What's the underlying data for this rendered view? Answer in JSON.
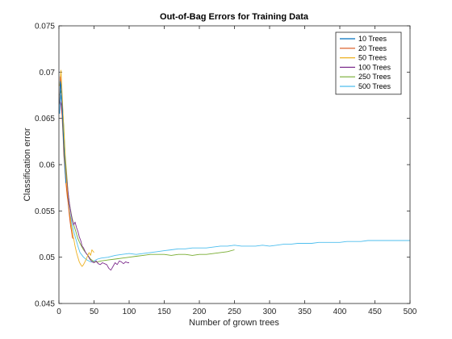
{
  "chart_data": {
    "type": "line",
    "title": "Out-of-Bag Errors for Training Data",
    "xlabel": "Number of grown trees",
    "ylabel": "Classification error",
    "xlim": [
      0,
      500
    ],
    "ylim": [
      0.045,
      0.075
    ],
    "xticks": [
      0,
      50,
      100,
      150,
      200,
      250,
      300,
      350,
      400,
      450,
      500
    ],
    "yticks": [
      0.045,
      0.05,
      0.055,
      0.06,
      0.065,
      0.07,
      0.075
    ],
    "xtick_labels": [
      "0",
      "50",
      "100",
      "150",
      "200",
      "250",
      "300",
      "350",
      "400",
      "450",
      "500"
    ],
    "ytick_labels": [
      "0.045",
      "0.05",
      "0.055",
      "0.06",
      "0.065",
      "0.07",
      "0.075"
    ],
    "grid": false,
    "legend_position": "top-right",
    "series": [
      {
        "name": "10 Trees",
        "color": "#0072BD",
        "x": [
          1,
          2,
          3,
          4,
          5,
          6,
          7,
          8,
          9,
          10
        ],
        "y": [
          0.0655,
          0.069,
          0.0685,
          0.067,
          0.066,
          0.0635,
          0.062,
          0.0605,
          0.0592,
          0.058
        ]
      },
      {
        "name": "20 Trees",
        "color": "#D95319",
        "x": [
          1,
          2,
          3,
          4,
          5,
          6,
          7,
          8,
          9,
          10,
          11,
          12,
          13,
          14,
          15,
          16,
          17,
          18,
          19,
          20
        ],
        "y": [
          0.0665,
          0.0695,
          0.0685,
          0.0665,
          0.0645,
          0.063,
          0.061,
          0.06,
          0.059,
          0.058,
          0.0572,
          0.0565,
          0.056,
          0.0552,
          0.0545,
          0.0538,
          0.0532,
          0.0528,
          0.0522,
          0.052
        ]
      },
      {
        "name": "50 Trees",
        "color": "#EDB120",
        "x": [
          1,
          3,
          5,
          7,
          9,
          11,
          13,
          15,
          17,
          19,
          21,
          23,
          25,
          27,
          29,
          31,
          33,
          35,
          37,
          39,
          41,
          43,
          45,
          47,
          50
        ],
        "y": [
          0.0685,
          0.0702,
          0.067,
          0.0635,
          0.0605,
          0.058,
          0.056,
          0.0548,
          0.0538,
          0.0528,
          0.052,
          0.0512,
          0.0505,
          0.05,
          0.0495,
          0.0492,
          0.049,
          0.0492,
          0.0495,
          0.0498,
          0.0502,
          0.0505,
          0.0502,
          0.0508,
          0.0505
        ]
      },
      {
        "name": "100 Trees",
        "color": "#7E2F8E",
        "x": [
          1,
          3,
          5,
          7,
          9,
          11,
          13,
          15,
          17,
          19,
          21,
          23,
          25,
          27,
          29,
          31,
          33,
          35,
          38,
          41,
          44,
          47,
          50,
          53,
          56,
          59,
          62,
          65,
          68,
          71,
          74,
          77,
          80,
          83,
          86,
          89,
          92,
          95,
          98,
          100
        ],
        "y": [
          0.067,
          0.0665,
          0.065,
          0.0625,
          0.0605,
          0.0585,
          0.057,
          0.0558,
          0.0548,
          0.054,
          0.0535,
          0.0538,
          0.0532,
          0.0528,
          0.0522,
          0.0518,
          0.0512,
          0.051,
          0.0505,
          0.0502,
          0.0498,
          0.0495,
          0.0494,
          0.0496,
          0.0493,
          0.0492,
          0.0494,
          0.0493,
          0.0492,
          0.0488,
          0.0486,
          0.049,
          0.0494,
          0.0492,
          0.0496,
          0.0495,
          0.0493,
          0.0495,
          0.0494,
          0.0494
        ]
      },
      {
        "name": "250 Trees",
        "color": "#77AC30",
        "x": [
          1,
          3,
          5,
          7,
          9,
          11,
          13,
          15,
          18,
          21,
          24,
          27,
          30,
          35,
          40,
          45,
          50,
          55,
          60,
          70,
          80,
          90,
          100,
          110,
          120,
          130,
          140,
          150,
          160,
          170,
          180,
          190,
          200,
          210,
          220,
          230,
          240,
          250
        ],
        "y": [
          0.0675,
          0.068,
          0.0665,
          0.064,
          0.061,
          0.059,
          0.057,
          0.0558,
          0.0545,
          0.0535,
          0.0528,
          0.052,
          0.0515,
          0.0508,
          0.0503,
          0.0498,
          0.0495,
          0.0495,
          0.0496,
          0.0497,
          0.0498,
          0.0499,
          0.05,
          0.0501,
          0.0502,
          0.0503,
          0.0503,
          0.0503,
          0.0502,
          0.0503,
          0.0503,
          0.0502,
          0.0503,
          0.0503,
          0.0504,
          0.0505,
          0.0506,
          0.0508
        ]
      },
      {
        "name": "500 Trees",
        "color": "#4DBEEE",
        "x": [
          1,
          3,
          5,
          7,
          9,
          11,
          13,
          15,
          18,
          21,
          24,
          27,
          30,
          35,
          40,
          45,
          50,
          55,
          60,
          70,
          80,
          90,
          100,
          110,
          120,
          130,
          140,
          150,
          160,
          170,
          180,
          190,
          200,
          210,
          220,
          230,
          240,
          250,
          260,
          270,
          280,
          290,
          300,
          310,
          320,
          330,
          340,
          350,
          360,
          370,
          380,
          390,
          400,
          410,
          420,
          430,
          440,
          450,
          460,
          470,
          480,
          490,
          500
        ],
        "y": [
          0.0665,
          0.0675,
          0.066,
          0.0635,
          0.0605,
          0.0585,
          0.0565,
          0.055,
          0.0538,
          0.0528,
          0.052,
          0.0512,
          0.0505,
          0.05,
          0.0497,
          0.0495,
          0.0496,
          0.0498,
          0.0499,
          0.05,
          0.0502,
          0.0503,
          0.0504,
          0.0503,
          0.0504,
          0.0505,
          0.0506,
          0.0507,
          0.0508,
          0.0509,
          0.0509,
          0.051,
          0.051,
          0.051,
          0.0511,
          0.0512,
          0.0512,
          0.0513,
          0.0512,
          0.0512,
          0.0512,
          0.0513,
          0.0512,
          0.0513,
          0.0514,
          0.0514,
          0.0515,
          0.0515,
          0.0515,
          0.0516,
          0.0516,
          0.0516,
          0.0516,
          0.0517,
          0.0517,
          0.0517,
          0.0518,
          0.0518,
          0.0518,
          0.0518,
          0.0518,
          0.0518,
          0.0518
        ]
      }
    ]
  }
}
